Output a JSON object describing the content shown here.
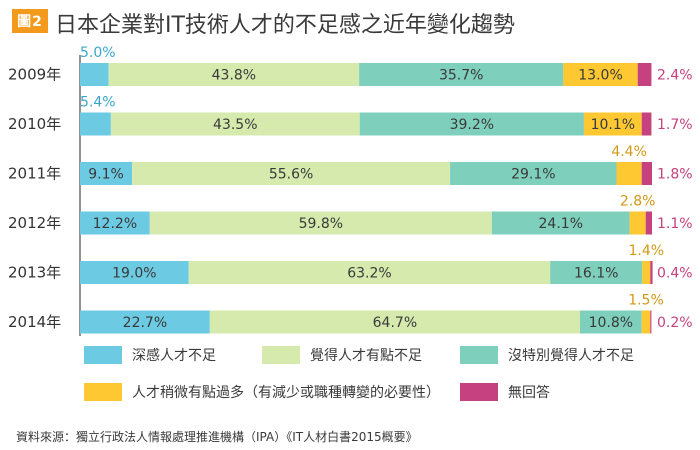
{
  "header": {
    "badge": "圖2",
    "title": "日本企業對IT技術人才的不足感之近年變化趨勢"
  },
  "colors": {
    "deep": "#6ccbe3",
    "some": "#d6eaae",
    "none": "#7ecfbb",
    "little": "#fec832",
    "noans": "#c5417f",
    "label_outside_blue": "#3aa6c9",
    "label_outside_gold": "#d19a16",
    "label_outside_pink": "#c5417f"
  },
  "chart_data": {
    "type": "bar",
    "orientation": "horizontal",
    "stacked": true,
    "categories": [
      "2009年",
      "2010年",
      "2011年",
      "2012年",
      "2013年",
      "2014年"
    ],
    "series": [
      {
        "name": "深感人才不足",
        "color": "#6ccbe3",
        "values": [
          5.0,
          5.4,
          9.1,
          12.2,
          19.0,
          22.7
        ],
        "labels": [
          "5.0%",
          "5.4%",
          "9.1%",
          "12.2%",
          "19.0%",
          "22.7%"
        ]
      },
      {
        "name": "覺得人才有點不足",
        "color": "#d6eaae",
        "values": [
          43.8,
          43.5,
          55.6,
          59.8,
          63.2,
          64.7
        ],
        "labels": [
          "43.8%",
          "43.5%",
          "55.6%",
          "59.8%",
          "63.2%",
          "64.7%"
        ]
      },
      {
        "name": "沒特別覺得人才不足",
        "color": "#7ecfbb",
        "values": [
          35.7,
          39.2,
          29.1,
          24.1,
          16.1,
          10.8
        ],
        "labels": [
          "35.7%",
          "39.2%",
          "29.1%",
          "24.1%",
          "16.1%",
          "10.8%"
        ]
      },
      {
        "name": "人才稍微有點過多（有減少或職種轉變的必要性）",
        "color": "#fec832",
        "values": [
          13.0,
          10.1,
          4.4,
          2.8,
          1.4,
          1.5
        ],
        "labels": [
          "13.0%",
          "10.1%",
          "4.4%",
          "2.8%",
          "1.4%",
          "1.5%"
        ]
      },
      {
        "name": "無回答",
        "color": "#c5417f",
        "values": [
          2.4,
          1.7,
          1.8,
          1.1,
          0.4,
          0.2
        ],
        "labels": [
          "2.4%",
          "1.7%",
          "1.8%",
          "1.1%",
          "0.4%",
          "0.2%"
        ]
      }
    ],
    "xlim": [
      0,
      100
    ],
    "legend_position": "bottom"
  },
  "legend": {
    "row1": [
      "深感人才不足",
      "覺得人才有點不足",
      "沒特別覺得人才不足"
    ],
    "row2": [
      "人才稍微有點過多（有減少或職種轉變的必要性）",
      "無回答"
    ]
  },
  "source": "資料來源：獨立行政法人情報處理推進機構（IPA）《IT人材白書2015概要》"
}
